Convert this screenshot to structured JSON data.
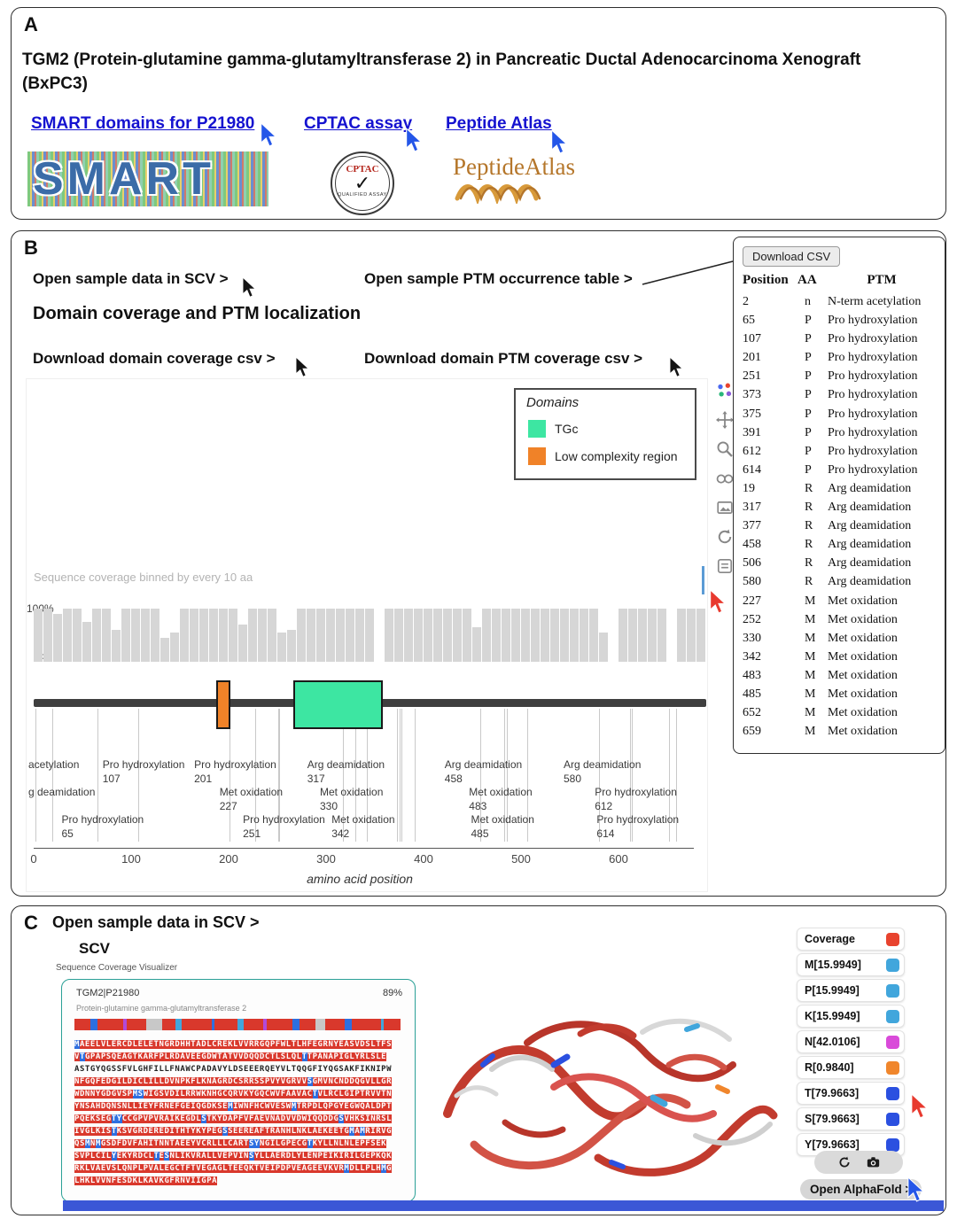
{
  "panelA": {
    "label": "A",
    "title": "TGM2 (Protein-glutamine gamma-glutamyltransferase 2) in Pancreatic Ductal Adenocarcinoma Xenograft (BxPC3)",
    "links": [
      {
        "label": "SMART domains for P21980"
      },
      {
        "label": "CPTAC assay"
      },
      {
        "label": "Peptide Atlas"
      }
    ],
    "logos": {
      "smart_text": "SMART",
      "cptac_title": "CPTAC",
      "cptac_check": "✓",
      "cptac_subtitle": "QUALIFIED ASSAY",
      "peptide_atlas_first": "Peptide",
      "peptide_atlas_second": "Atlas"
    }
  },
  "panelB": {
    "label": "B",
    "open_scv_link": "Open sample data in SCV >",
    "open_ptm_table_link": "Open sample PTM occurrence table >",
    "heading": "Domain coverage and PTM localization",
    "download_domain_csv_link": "Download domain coverage csv >",
    "download_ptm_csv_link": "Download domain PTM coverage csv >",
    "chart_data": {
      "type": "bar",
      "title": "Sequence coverage binned by every 10 aa",
      "xlabel": "amino acid position",
      "ylabel": "",
      "ylim": [
        0,
        100
      ],
      "y_ticks": [
        "100%",
        "0%"
      ],
      "x_ticks": [
        0,
        100,
        200,
        300,
        400,
        500,
        600
      ],
      "bin_size_aa": 10,
      "protein_length_aa": 690,
      "coverage_bins": [
        100,
        100,
        90,
        100,
        100,
        75,
        100,
        100,
        60,
        100,
        100,
        100,
        100,
        45,
        55,
        100,
        100,
        100,
        100,
        100,
        100,
        70,
        100,
        100,
        100,
        55,
        60,
        100,
        100,
        100,
        100,
        100,
        100,
        100,
        100,
        0,
        100,
        100,
        100,
        100,
        100,
        100,
        100,
        100,
        100,
        65,
        100,
        100,
        100,
        100,
        100,
        100,
        100,
        100,
        100,
        100,
        100,
        100,
        55,
        0,
        100,
        100,
        100,
        100,
        100,
        0,
        100,
        100,
        100
      ],
      "legend": {
        "title": "Domains",
        "position": "top-right",
        "items": [
          {
            "label": "TGc",
            "color": "#3de6a2"
          },
          {
            "label": "Low complexity region",
            "color": "#f08228"
          }
        ]
      },
      "domains": [
        {
          "name": "Low complexity region",
          "start": 187,
          "end": 202,
          "color": "#f08228"
        },
        {
          "name": "TGc",
          "start": 266,
          "end": 358,
          "color": "#3de6a2"
        }
      ],
      "ptm_positions": [
        2,
        19,
        65,
        107,
        201,
        227,
        251,
        252,
        317,
        330,
        342,
        373,
        375,
        377,
        391,
        458,
        483,
        485,
        506,
        580,
        612,
        614,
        652,
        659
      ],
      "ptm_label_rows": [
        [
          {
            "name": "acetylation",
            "num": "",
            "aa": 2
          },
          {
            "name": "Pro hydroxylation",
            "num": "107",
            "aa": 107
          },
          {
            "name": "Pro hydroxylation",
            "num": "201",
            "aa": 201
          },
          {
            "name": "Arg deamidation",
            "num": "317",
            "aa": 317
          },
          {
            "name": "Arg deamidation",
            "num": "458",
            "aa": 458
          },
          {
            "name": "Arg deamidation",
            "num": "580",
            "aa": 580
          }
        ],
        [
          {
            "name": "g deamidation",
            "num": "",
            "aa": 19
          },
          {
            "name": "Met oxidation",
            "num": "227",
            "aa": 227
          },
          {
            "name": "Met oxidation",
            "num": "330",
            "aa": 330
          },
          {
            "name": "Met oxidation",
            "num": "483",
            "aa": 483
          },
          {
            "name": "Pro hydroxylation",
            "num": "612",
            "aa": 612
          }
        ],
        [
          {
            "name": "Pro hydroxylation",
            "num": "65",
            "aa": 65
          },
          {
            "name": "Pro hydroxylation",
            "num": "251",
            "aa": 251
          },
          {
            "name": "Met oxidation",
            "num": "342",
            "aa": 342
          },
          {
            "name": "Met oxidation",
            "num": "485",
            "aa": 485
          },
          {
            "name": "Pro hydroxylation",
            "num": "614",
            "aa": 614
          }
        ]
      ]
    },
    "modebar_icons": [
      "plotly-logo",
      "pan",
      "zoom",
      "compare",
      "snapshot",
      "reset",
      "hover"
    ],
    "ptm_table": {
      "download_button": "Download CSV",
      "columns": [
        "Position",
        "AA",
        "PTM"
      ],
      "rows": [
        [
          "2",
          "n",
          "N-term acetylation"
        ],
        [
          "65",
          "P",
          "Pro hydroxylation"
        ],
        [
          "107",
          "P",
          "Pro hydroxylation"
        ],
        [
          "201",
          "P",
          "Pro hydroxylation"
        ],
        [
          "251",
          "P",
          "Pro hydroxylation"
        ],
        [
          "373",
          "P",
          "Pro hydroxylation"
        ],
        [
          "375",
          "P",
          "Pro hydroxylation"
        ],
        [
          "391",
          "P",
          "Pro hydroxylation"
        ],
        [
          "612",
          "P",
          "Pro hydroxylation"
        ],
        [
          "614",
          "P",
          "Pro hydroxylation"
        ],
        [
          "19",
          "R",
          "Arg deamidation"
        ],
        [
          "317",
          "R",
          "Arg deamidation"
        ],
        [
          "377",
          "R",
          "Arg deamidation"
        ],
        [
          "458",
          "R",
          "Arg deamidation"
        ],
        [
          "506",
          "R",
          "Arg deamidation"
        ],
        [
          "580",
          "R",
          "Arg deamidation"
        ],
        [
          "227",
          "M",
          "Met oxidation"
        ],
        [
          "252",
          "M",
          "Met oxidation"
        ],
        [
          "330",
          "M",
          "Met oxidation"
        ],
        [
          "342",
          "M",
          "Met oxidation"
        ],
        [
          "483",
          "M",
          "Met oxidation"
        ],
        [
          "485",
          "M",
          "Met oxidation"
        ],
        [
          "652",
          "M",
          "Met oxidation"
        ],
        [
          "659",
          "M",
          "Met oxidation"
        ]
      ]
    }
  },
  "panelC": {
    "label": "C",
    "heading": "Open sample data in SCV >",
    "scv": {
      "title": "SCV",
      "subtitle": "Sequence Coverage Visualizer",
      "protein_id": "TGM2|P21980",
      "coverage_percent": "89%",
      "protein_name": "Protein-glutamine gamma-glutamyltransferase 2",
      "coverage_segments": [
        [
          5,
          "#d9382c"
        ],
        [
          2,
          "#2d6fe0"
        ],
        [
          8,
          "#d9382c"
        ],
        [
          1,
          "#b24ad9"
        ],
        [
          6,
          "#d9382c"
        ],
        [
          5,
          "#c8c8c8"
        ],
        [
          4,
          "#d9382c"
        ],
        [
          2,
          "#41a6dc"
        ],
        [
          9,
          "#d9382c"
        ],
        [
          1,
          "#2d6fe0"
        ],
        [
          7,
          "#d9382c"
        ],
        [
          2,
          "#41a6dc"
        ],
        [
          6,
          "#d9382c"
        ],
        [
          1,
          "#b24ad9"
        ],
        [
          8,
          "#d9382c"
        ],
        [
          2,
          "#2d6fe0"
        ],
        [
          5,
          "#d9382c"
        ],
        [
          3,
          "#c8c8c8"
        ],
        [
          6,
          "#d9382c"
        ],
        [
          2,
          "#2d6fe0"
        ],
        [
          9,
          "#d9382c"
        ],
        [
          1,
          "#41a6dc"
        ],
        [
          5,
          "#d9382c"
        ]
      ],
      "sequence_lines": [
        [
          [
            "M",
            "b"
          ],
          [
            "AEELVLERCDLELETNGRDHHTADLCREKLVVRRGQPFWLTLHFEGRNYEASVDSLTFS",
            "r"
          ]
        ],
        [
          [
            "V",
            "r"
          ],
          [
            "T",
            "b"
          ],
          [
            "GPAPSQEAGTKARFPLRDAVEEGDWTATVVDQQDCTLSLQL",
            "r"
          ],
          [
            "T",
            "b"
          ],
          [
            "TPANAPIGLYRLSLE",
            "r"
          ]
        ],
        [
          [
            "ASTGYQGSSFVLGHFILLFNAWCPADAVYLDSEEERQEYVLTQQGFIYQGSAKFIKNIPW",
            "u"
          ]
        ],
        [
          [
            "NFGQFEDGILDICLILLDVNPKFLKNAGRDCSRRSSPVYVGRVV",
            "r"
          ],
          [
            "S",
            "b"
          ],
          [
            "GMVNCNDDQGVLLGR",
            "r"
          ]
        ],
        [
          [
            "WDNNYGDGVSP",
            "r"
          ],
          [
            "MS",
            "b"
          ],
          [
            "WIGSVDILRRWKNHGCQRVKYGQCWVFAAVAC",
            "r"
          ],
          [
            "T",
            "b"
          ],
          [
            "VLRCLGIPTRVVTN",
            "r"
          ]
        ],
        [
          [
            "YNSAHDQNSNLLIEYFRNEFGEIQGDKSE",
            "r"
          ],
          [
            "M",
            "b"
          ],
          [
            "IWNFHCWVESW",
            "r"
          ],
          [
            "M",
            "b"
          ],
          [
            "TRPDLQPGYEGWQALDPT",
            "r"
          ]
        ],
        [
          [
            "PQEKSEG",
            "r"
          ],
          [
            "TY",
            "b"
          ],
          [
            "CCGPVPVRAIKEGDL",
            "r"
          ],
          [
            "S",
            "b"
          ],
          [
            "TKYDAPFVFAEVNADVVDWIQQDDG",
            "r"
          ],
          [
            "S",
            "b"
          ],
          [
            "VHKSINRSL",
            "r"
          ]
        ],
        [
          [
            "IVGLKIS",
            "r"
          ],
          [
            "T",
            "b"
          ],
          [
            "KSVGRDEREDITHTYKYPEG",
            "r"
          ],
          [
            "S",
            "b"
          ],
          [
            "SEEREAFTRANHLNKLAEKEETG",
            "r"
          ],
          [
            "M",
            "b"
          ],
          [
            "A",
            "r"
          ],
          [
            "M",
            "b"
          ],
          [
            "RIRVG",
            "r"
          ]
        ],
        [
          [
            "QS",
            "r"
          ],
          [
            "M",
            "b"
          ],
          [
            "N",
            "r"
          ],
          [
            "M",
            "b"
          ],
          [
            "GSDFDVFAHITNNTAEEYVCRLLLCART",
            "r"
          ],
          [
            "SY",
            "b"
          ],
          [
            "NGILGPECG",
            "r"
          ],
          [
            "T",
            "b"
          ],
          [
            "KYLLNLNLEPFSEK",
            "r"
          ]
        ],
        [
          [
            "SVPLCIL",
            "r"
          ],
          [
            "Y",
            "b"
          ],
          [
            "EKYRDCL",
            "r"
          ],
          [
            "T",
            "b"
          ],
          [
            "E",
            "r"
          ],
          [
            "S",
            "b"
          ],
          [
            "NLIKVRALLVEPVIN",
            "r"
          ],
          [
            "S",
            "b"
          ],
          [
            "YLLAERDLYLENPEIKIRILGEPKQK",
            "r"
          ]
        ],
        [
          [
            "RKLVAEVSLQNPLPVALEGCTFTVEGAGLTEEQKTVEIPDPVEAGEEVKVR",
            "r"
          ],
          [
            "M",
            "b"
          ],
          [
            "DLLPLH",
            "r"
          ],
          [
            "M",
            "b"
          ],
          [
            "G",
            "r"
          ]
        ],
        [
          [
            "LHKLVVNFESDKLKAVKGFRNVIIGPA",
            "r"
          ]
        ]
      ]
    },
    "legend": [
      {
        "label": "Coverage",
        "color": "#e8432e"
      },
      {
        "label": "M[15.9949]",
        "color": "#41a6dc"
      },
      {
        "label": "P[15.9949]",
        "color": "#41a6dc"
      },
      {
        "label": "K[15.9949]",
        "color": "#41a6dc"
      },
      {
        "label": "N[42.0106]",
        "color": "#d94ad9"
      },
      {
        "label": "R[0.9840]",
        "color": "#f0862c"
      },
      {
        "label": "T[79.9663]",
        "color": "#2b50e0"
      },
      {
        "label": "S[79.9663]",
        "color": "#2b50e0"
      },
      {
        "label": "Y[79.9663]",
        "color": "#2b50e0"
      }
    ],
    "alphafold_button": "Open AlphaFold >"
  }
}
